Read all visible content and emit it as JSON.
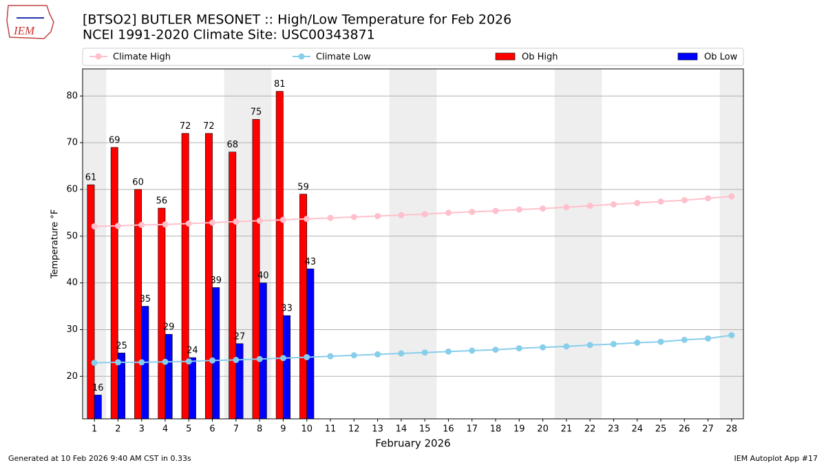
{
  "chart_data": {
    "type": "bar_line",
    "title": "[BTSO2] BUTLER MESONET :: High/Low Temperature for Feb 2026",
    "subtitle": "NCEI 1991-2020 Climate Site: USC00343871",
    "x_label": "February 2026",
    "y_label": "Temperature °F",
    "footer_left": "Generated at 10 Feb 2026 9:40 AM CST in 0.33s",
    "footer_right": "IEM Autoplot App #17",
    "logo_text": "IEM",
    "x": [
      1,
      2,
      3,
      4,
      5,
      6,
      7,
      8,
      9,
      10,
      11,
      12,
      13,
      14,
      15,
      16,
      17,
      18,
      19,
      20,
      21,
      22,
      23,
      24,
      25,
      26,
      27,
      28
    ],
    "xlim": [
      0.5,
      28.5
    ],
    "xticks": [
      1,
      2,
      3,
      4,
      5,
      6,
      7,
      8,
      9,
      10,
      11,
      12,
      13,
      14,
      15,
      16,
      17,
      18,
      19,
      20,
      21,
      22,
      23,
      24,
      25,
      26,
      27,
      28
    ],
    "ylim": [
      10.9,
      85.8
    ],
    "yticks": [
      20,
      30,
      40,
      50,
      60,
      70,
      80
    ],
    "grid": true,
    "shaded_days": [
      1,
      7,
      8,
      14,
      15,
      21,
      22,
      28
    ],
    "series": [
      {
        "name": "Climate High",
        "kind": "line",
        "color": "#ffc0cb",
        "values": [
          52.1,
          52.2,
          52.4,
          52.5,
          52.7,
          52.9,
          53.1,
          53.3,
          53.5,
          53.7,
          53.9,
          54.1,
          54.3,
          54.5,
          54.7,
          55.0,
          55.2,
          55.4,
          55.7,
          55.9,
          56.2,
          56.5,
          56.8,
          57.1,
          57.4,
          57.7,
          58.1,
          58.5
        ]
      },
      {
        "name": "Climate Low",
        "kind": "line",
        "color": "#87ceeb",
        "values": [
          22.9,
          23.0,
          23.0,
          23.1,
          23.2,
          23.4,
          23.5,
          23.7,
          23.9,
          24.1,
          24.3,
          24.5,
          24.7,
          24.9,
          25.1,
          25.3,
          25.5,
          25.7,
          26.0,
          26.2,
          26.4,
          26.7,
          26.9,
          27.2,
          27.4,
          27.8,
          28.1,
          28.8
        ]
      },
      {
        "name": "Ob High",
        "kind": "bar",
        "color": "#ff0000",
        "values": [
          61,
          69,
          60,
          56,
          72,
          72,
          68,
          75,
          81,
          59,
          null,
          null,
          null,
          null,
          null,
          null,
          null,
          null,
          null,
          null,
          null,
          null,
          null,
          null,
          null,
          null,
          null,
          null
        ]
      },
      {
        "name": "Ob Low",
        "kind": "bar",
        "color": "#0000ff",
        "values": [
          16,
          25,
          35,
          29,
          24,
          39,
          27,
          40,
          33,
          43,
          null,
          null,
          null,
          null,
          null,
          null,
          null,
          null,
          null,
          null,
          null,
          null,
          null,
          null,
          null,
          null,
          null,
          null
        ]
      }
    ]
  }
}
